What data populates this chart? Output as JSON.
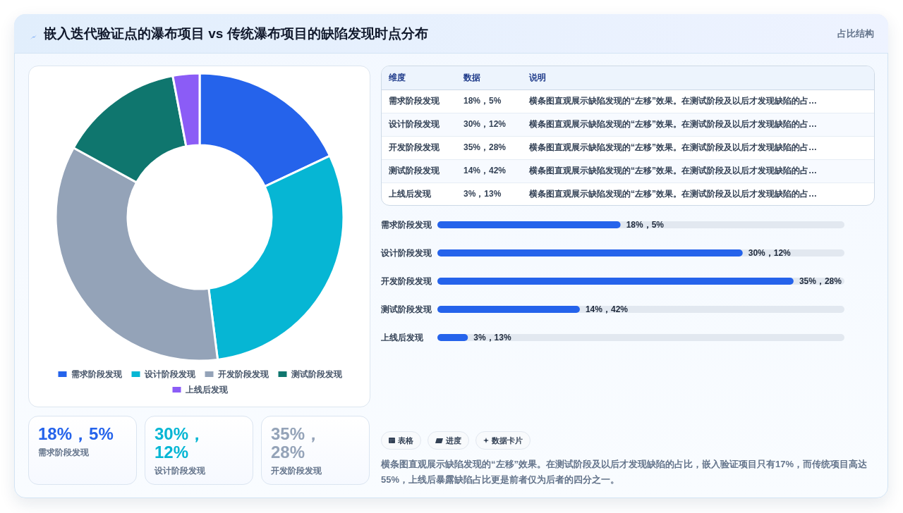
{
  "chart_data": [
    {
      "type": "other",
      "title": "嵌入迭代验证点的瀑布项目 vs 传统瀑布项目的缺陷发现时点分布",
      "subtitle": "占比结构"
    },
    {
      "type": "donut",
      "categories": [
        "需求阶段发现",
        "设计阶段发现",
        "开发阶段发现",
        "测试阶段发现",
        "上线后发现"
      ],
      "values": [
        18,
        30,
        35,
        14,
        3
      ],
      "colors": [
        "#2563eb",
        "#06b6d4",
        "#94a3b8",
        "#0f766e",
        "#8b5cf6"
      ],
      "legend": "bottom"
    },
    {
      "type": "other",
      "categories": [
        "维度",
        "数据",
        "说明"
      ],
      "cell_labels": [
        [
          "需求阶段发现",
          "18%，5%",
          "横条图直观展示缺陷发现的“左移”效果。在测试阶段及以后才发现缺陷的占…"
        ],
        [
          "设计阶段发现",
          "30%，12%",
          "横条图直观展示缺陷发现的“左移”效果。在测试阶段及以后才发现缺陷的占…"
        ],
        [
          "开发阶段发现",
          "35%，28%",
          "横条图直观展示缺陷发现的“左移”效果。在测试阶段及以后才发现缺陷的占…"
        ],
        [
          "测试阶段发现",
          "14%，42%",
          "横条图直观展示缺陷发现的“左移”效果。在测试阶段及以后才发现缺陷的占…"
        ],
        [
          "上线后发现",
          "3%，13%",
          "横条图直观展示缺陷发现的“左移”效果。在测试阶段及以后才发现缺陷的占…"
        ]
      ]
    },
    {
      "type": "bar",
      "orientation": "horizontal",
      "categories": [
        "需求阶段发现",
        "设计阶段发现",
        "开发阶段发现",
        "测试阶段发现",
        "上线后发现"
      ],
      "values": [
        18,
        30,
        35,
        14,
        3
      ],
      "color": "#2563eb",
      "value_labels": [
        "18%，5%",
        "30%，12%",
        "35%，28%",
        "14%，42%",
        "3%，13%"
      ],
      "tick_labels": "y"
    },
    {
      "type": "other",
      "categories": [
        "需求阶段发现",
        "设计阶段发现",
        "开发阶段发现"
      ],
      "value_labels": [
        "18%，5%",
        "30%，12%",
        "35%，28%"
      ]
    },
    {
      "type": "other",
      "categories": [
        "表格",
        "进度",
        "数据卡片"
      ],
      "annotations": [
        "横条图直观展示缺陷发现的“左移”效果。在测试阶段及以后才发现缺陷的占比，嵌入验证项目只有17%，而传统项目高达55%，上线后暴露缺陷占比更是前者仅为后者的四分之一。"
      ]
    }
  ]
}
